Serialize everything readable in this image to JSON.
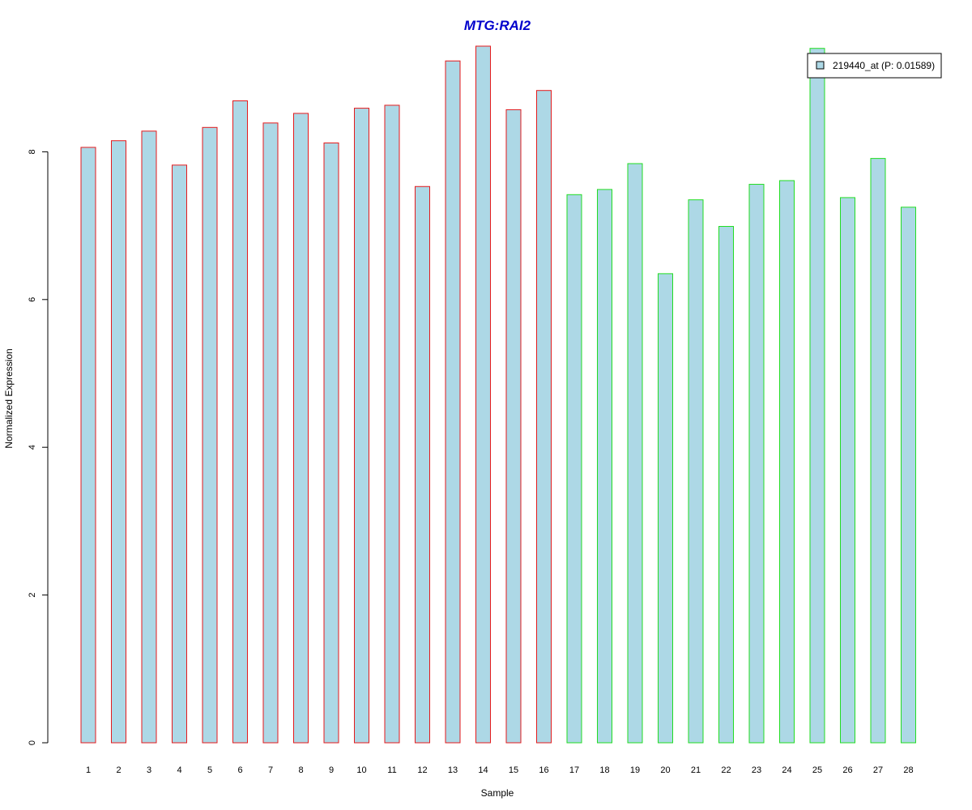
{
  "chart_data": {
    "type": "bar",
    "title": "MTG:RAI2",
    "xlabel": "Sample",
    "ylabel": "Normalized Expression",
    "categories": [
      "1",
      "2",
      "3",
      "4",
      "5",
      "6",
      "7",
      "8",
      "9",
      "10",
      "11",
      "12",
      "13",
      "14",
      "15",
      "16",
      "17",
      "18",
      "19",
      "20",
      "21",
      "22",
      "23",
      "24",
      "25",
      "26",
      "27",
      "28"
    ],
    "series": [
      {
        "name": "219440_at (P: 0.01589)",
        "values": [
          8.06,
          8.15,
          8.28,
          7.82,
          8.33,
          8.69,
          8.39,
          8.52,
          8.12,
          8.59,
          8.63,
          7.53,
          9.23,
          9.43,
          8.57,
          8.83,
          7.42,
          7.49,
          7.84,
          6.35,
          7.35,
          6.99,
          7.56,
          7.61,
          9.4,
          7.38,
          7.91,
          7.25
        ]
      }
    ],
    "group_border_colors": [
      "#e41a1c",
      "#e41a1c",
      "#e41a1c",
      "#e41a1c",
      "#e41a1c",
      "#e41a1c",
      "#e41a1c",
      "#e41a1c",
      "#e41a1c",
      "#e41a1c",
      "#e41a1c",
      "#e41a1c",
      "#e41a1c",
      "#e41a1c",
      "#e41a1c",
      "#e41a1c",
      "#22dd22",
      "#22dd22",
      "#22dd22",
      "#22dd22",
      "#22dd22",
      "#22dd22",
      "#22dd22",
      "#22dd22",
      "#22dd22",
      "#22dd22",
      "#22dd22",
      "#22dd22"
    ],
    "yticks": [
      0,
      2,
      4,
      6,
      8
    ],
    "ylim": [
      0,
      9.43
    ],
    "grid": false,
    "legend_position": "top-right",
    "colors": {
      "bar_fill": "#add8e6",
      "title": "#0000cc",
      "axis": "#000000"
    }
  }
}
